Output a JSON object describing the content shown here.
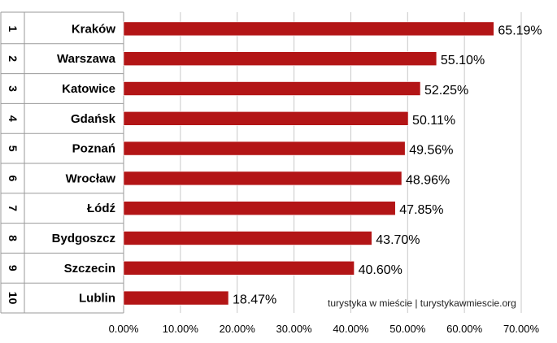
{
  "chart_data": {
    "type": "bar",
    "orientation": "horizontal",
    "ranks": [
      "1",
      "2",
      "3",
      "4",
      "5",
      "6",
      "7",
      "8",
      "9",
      "10"
    ],
    "categories": [
      "Kraków",
      "Warszawa",
      "Katowice",
      "Gdańsk",
      "Poznań",
      "Wrocław",
      "Łódź",
      "Bydgoszcz",
      "Szczecin",
      "Lublin"
    ],
    "values": [
      65.19,
      55.1,
      52.25,
      50.11,
      49.56,
      48.96,
      47.85,
      43.7,
      40.6,
      18.47
    ],
    "value_labels": [
      "65.19%",
      "55.10%",
      "52.25%",
      "50.11%",
      "49.56%",
      "48.96%",
      "47.85%",
      "43.70%",
      "40.60%",
      "18.47%"
    ],
    "x_ticks": [
      "0.00%",
      "10.00%",
      "20.00%",
      "30.00%",
      "40.00%",
      "50.00%",
      "60.00%",
      "70.00%"
    ],
    "xlim": [
      0,
      70
    ],
    "bar_color": "#b31516",
    "grid": true,
    "annotation": "turystyka w mieście | turystykawmiescie.org"
  }
}
